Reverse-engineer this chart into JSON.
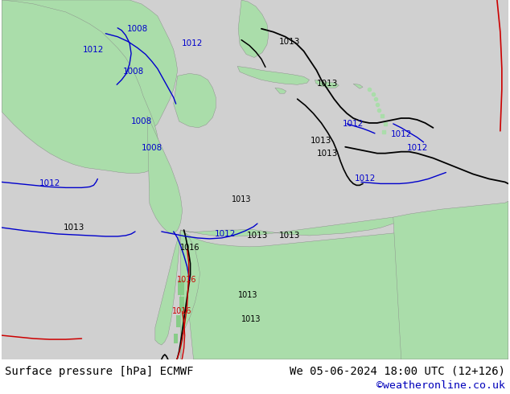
{
  "bottom_left_text": "Surface pressure [hPa] ECMWF",
  "bottom_right_text": "We 05-06-2024 18:00 UTC (12+126)",
  "bottom_link_text": "©weatheronline.co.uk",
  "bottom_link_color": "#0000bb",
  "fig_width": 6.34,
  "fig_height": 4.9,
  "dpi": 100,
  "map_bg_color": "#c8c8c8",
  "land_color": "#aaddaa",
  "bottom_bar_color": "#d4d4d4",
  "contour_blue": "#0000cc",
  "contour_black": "#000000",
  "contour_red": "#cc0000"
}
